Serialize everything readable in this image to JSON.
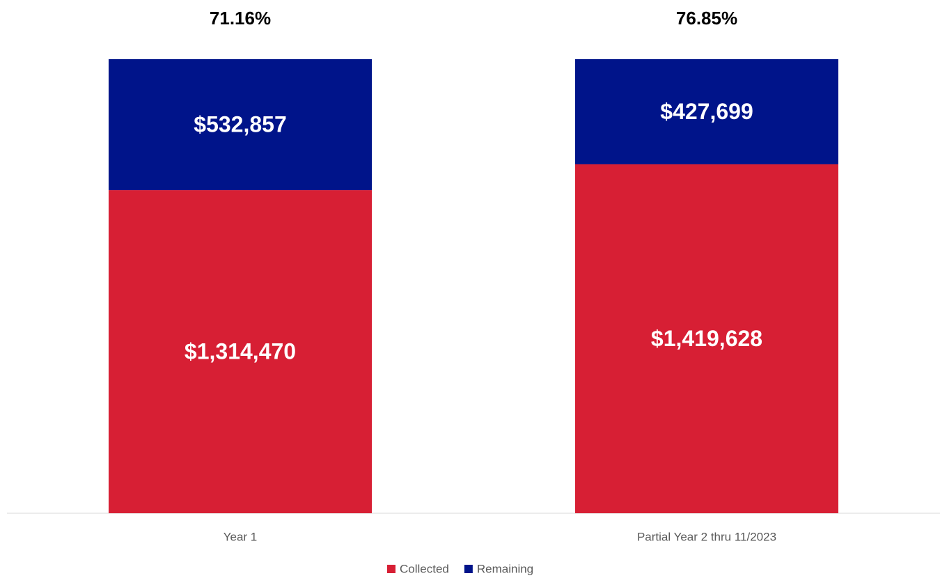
{
  "chart_data": {
    "type": "stacked_bar",
    "categories": [
      "Year 1",
      "Partial Year 2 thru 11/2023"
    ],
    "series": [
      {
        "name": "Collected",
        "color": "#d71f34",
        "values": [
          1314470,
          1419628
        ],
        "value_labels": [
          "$1,314,470",
          "$1,419,628"
        ]
      },
      {
        "name": "Remaining",
        "color": "#00148a",
        "values": [
          532857,
          427699
        ],
        "value_labels": [
          "$532,857",
          "$427,699"
        ]
      }
    ],
    "percent_collected": {
      "values": [
        71.16,
        76.85
      ],
      "value_labels": [
        "71.16%",
        "76.85%"
      ]
    },
    "ylim": [
      0,
      1847327
    ],
    "legend": "bottom"
  }
}
